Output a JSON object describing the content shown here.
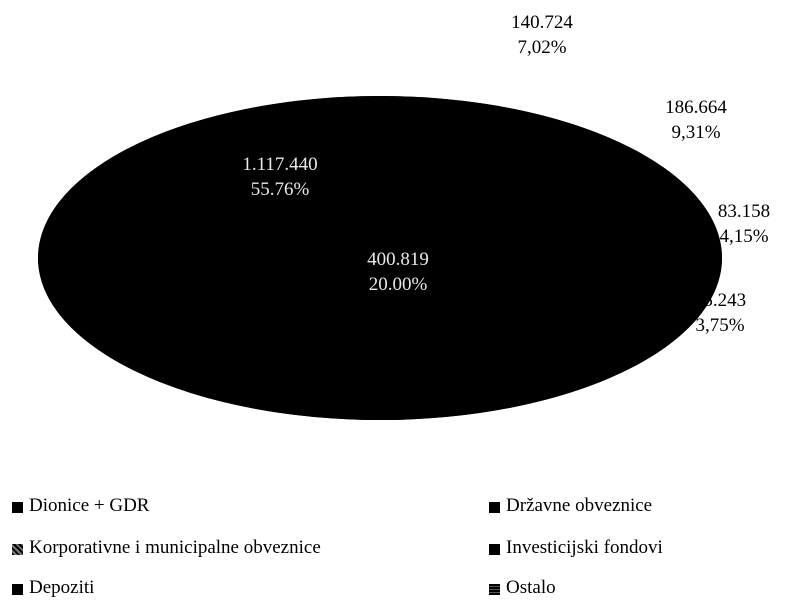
{
  "chart_data": {
    "type": "pie",
    "title": "",
    "categories": [
      "Dionice + GDR",
      "Državne obveznice",
      "Korporativne i municipalne obveznice",
      "Investicijski fondovi",
      "Depoziti",
      "Ostalo"
    ],
    "slices": [
      {
        "name": "Dionice + GDR",
        "value": 1117440,
        "value_label": "1.117.440",
        "percent_label": "55,76%",
        "color": "#000000"
      },
      {
        "name": "Državne obveznice",
        "value": 400819,
        "value_label": "400.819",
        "percent_label": "20,00%",
        "color": "#000000"
      },
      {
        "name": "Korporativne i municipalne obveznice",
        "value": 140724,
        "value_label": "140.724",
        "percent_label": "7,02%",
        "color": "#000000"
      },
      {
        "name": "Investicijski fondovi",
        "value": 186664,
        "value_label": "186.664",
        "percent_label": "9,31%",
        "color": "#000000"
      },
      {
        "name": "Depoziti",
        "value": 83158,
        "value_label": "83.158",
        "percent_label": "4,15%",
        "color": "#000000"
      },
      {
        "name": "Ostalo",
        "value": 75243,
        "value_label": "75.243",
        "percent_label": "3,75%",
        "color": "#000000"
      }
    ],
    "inner_labels": [
      {
        "value": "1.117.440",
        "percent": "55.76%"
      },
      {
        "value": "400.819",
        "percent": "20.00%"
      }
    ],
    "outer_labels": [
      {
        "value": "140.724",
        "percent": "7,02%"
      },
      {
        "value": "186.664",
        "percent": "9,31%"
      },
      {
        "value": "83.158",
        "percent": "4,15%"
      },
      {
        "value": "75.243",
        "percent": "3,75%"
      }
    ],
    "legend": {
      "placement": "bottom",
      "items": [
        {
          "label": "Dionice + GDR",
          "marker": "■"
        },
        {
          "label": "Državne obveznice",
          "marker": "■"
        },
        {
          "label": "Korporativne i municipalne obveznice",
          "marker": "▩"
        },
        {
          "label": "Investicijski fondovi",
          "marker": "■"
        },
        {
          "label": "Depoziti",
          "marker": "■"
        },
        {
          "label": "Ostalo",
          "marker": "■"
        }
      ]
    },
    "grid": false
  }
}
